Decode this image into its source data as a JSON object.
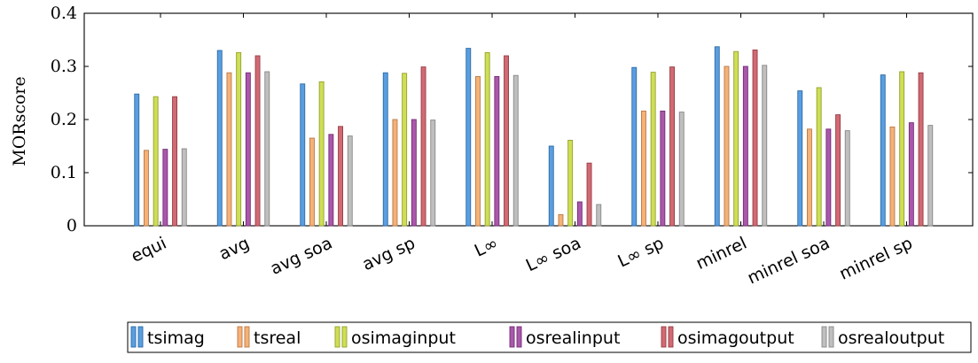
{
  "chart_data": {
    "type": "bar",
    "ylabel": "MORscore",
    "ylim": [
      0,
      0.4
    ],
    "yticks": [
      "0",
      "0.1",
      "0.2",
      "0.3",
      "0.4"
    ],
    "grid": false,
    "legend_position": "bottom",
    "categories": [
      "equi",
      "avg",
      "avg soa",
      "avg sp",
      "L∞",
      "L∞ soa",
      "L∞ sp",
      "minrel",
      "minrel soa",
      "minrel sp"
    ],
    "series": [
      {
        "name": "tsimag",
        "color": "#3c8ddc",
        "values": [
          0.248,
          0.33,
          0.267,
          0.288,
          0.334,
          0.15,
          0.298,
          0.337,
          0.254,
          0.284
        ]
      },
      {
        "name": "tsreal",
        "color": "#f4a35f",
        "values": [
          0.142,
          0.288,
          0.165,
          0.2,
          0.281,
          0.021,
          0.216,
          0.3,
          0.182,
          0.186
        ]
      },
      {
        "name": "osimaginput",
        "color": "#c5d838",
        "values": [
          0.243,
          0.326,
          0.271,
          0.287,
          0.326,
          0.161,
          0.289,
          0.328,
          0.26,
          0.29
        ]
      },
      {
        "name": "osrealinput",
        "color": "#9b3b9c",
        "values": [
          0.144,
          0.288,
          0.172,
          0.2,
          0.281,
          0.045,
          0.216,
          0.3,
          0.182,
          0.194
        ]
      },
      {
        "name": "osimagoutput",
        "color": "#c9505a",
        "values": [
          0.243,
          0.32,
          0.187,
          0.299,
          0.32,
          0.118,
          0.299,
          0.331,
          0.209,
          0.288
        ]
      },
      {
        "name": "osrealoutput",
        "color": "#b4b4b4",
        "values": [
          0.145,
          0.29,
          0.169,
          0.199,
          0.283,
          0.04,
          0.214,
          0.302,
          0.179,
          0.189
        ]
      }
    ]
  }
}
